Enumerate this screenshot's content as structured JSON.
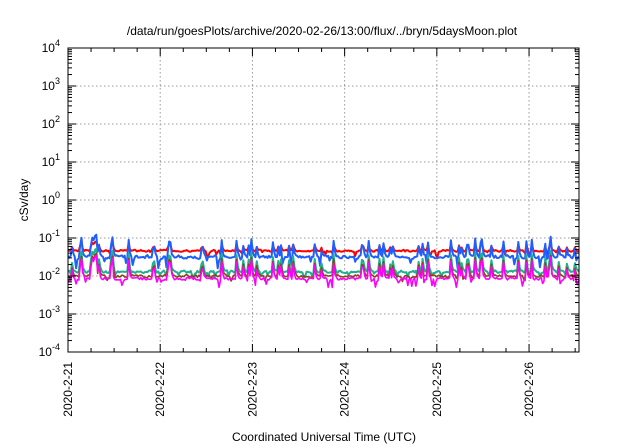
{
  "chart_data": {
    "type": "line",
    "title": "/data/run/goesPlots/archive/2020-02-26/13:00/flux/../bryn/5daysMoon.plot",
    "xlabel": "Coordinated Universal Time (UTC)",
    "ylabel": "cSv/day",
    "yscale": "log",
    "ylim": [
      0.0001,
      10000
    ],
    "y_ticks": [
      {
        "value": 0.0001,
        "base": "10",
        "exp": "-4"
      },
      {
        "value": 0.001,
        "base": "10",
        "exp": "-3"
      },
      {
        "value": 0.01,
        "base": "10",
        "exp": "-2"
      },
      {
        "value": 0.1,
        "base": "10",
        "exp": "-1"
      },
      {
        "value": 1,
        "base": "10",
        "exp": "0"
      },
      {
        "value": 10,
        "base": "10",
        "exp": "1"
      },
      {
        "value": 100,
        "base": "10",
        "exp": "2"
      },
      {
        "value": 1000,
        "base": "10",
        "exp": "3"
      },
      {
        "value": 10000,
        "base": "10",
        "exp": "4"
      }
    ],
    "xlim": [
      "2020-02-21",
      "2020-02-26 13:00"
    ],
    "x_ticks": [
      {
        "date": "2020-02-21",
        "label": "2020-2-21"
      },
      {
        "date": "2020-02-22",
        "label": "2020-2-22"
      },
      {
        "date": "2020-02-23",
        "label": "2020-2-23"
      },
      {
        "date": "2020-02-24",
        "label": "2020-2-24"
      },
      {
        "date": "2020-02-25",
        "label": "2020-2-25"
      },
      {
        "date": "2020-02-26",
        "label": "2020-2-26"
      }
    ],
    "grid": true,
    "legend": "none",
    "series": [
      {
        "color": "#ff0000",
        "base": 0.046,
        "low": 0.03,
        "high": 0.085,
        "spread": 0.55
      },
      {
        "color": "#1f5fff",
        "base": 0.032,
        "low": 0.012,
        "high": 0.14,
        "spread": 0.85
      },
      {
        "color": "#20b090",
        "base": 0.013,
        "low": 0.008,
        "high": 0.06,
        "spread": 0.7
      },
      {
        "color": "#8b4513",
        "base": 0.01,
        "low": 0.0065,
        "high": 0.045,
        "spread": 0.7
      },
      {
        "color": "#ff00ff",
        "base": 0.0085,
        "low": 0.0042,
        "high": 0.04,
        "spread": 0.8
      }
    ]
  }
}
